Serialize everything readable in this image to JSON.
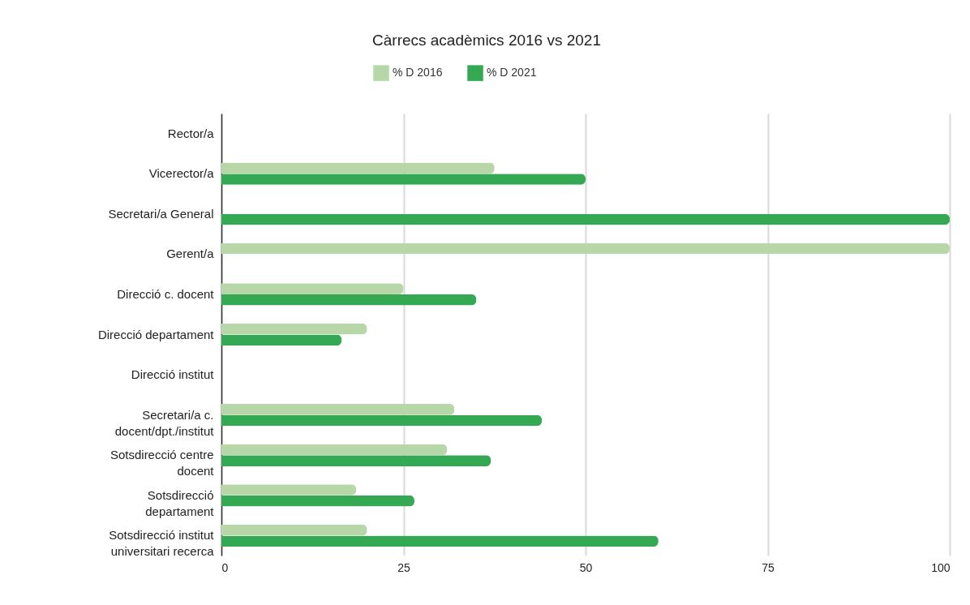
{
  "chart_data": {
    "type": "bar",
    "orientation": "horizontal",
    "title": "Càrrecs acadèmics 2016 vs 2021",
    "categories": [
      "Rector/a",
      "Vicerector/a",
      "Secretari/a General",
      "Gerent/a",
      "Direcció c. docent",
      "Direcció departament",
      "Direcció institut",
      "Secretari/a c. docent/dpt./institut",
      "Sotsdirecció centre docent",
      "Sotsdirecció departament",
      "Sotsdirecció institut universitari recerca"
    ],
    "series": [
      {
        "name": "% D 2016",
        "color": "#b7d7a8",
        "values": [
          null,
          37.5,
          null,
          100,
          25,
          20,
          null,
          32,
          31,
          18.5,
          20
        ]
      },
      {
        "name": "% D 2021",
        "color": "#34a853",
        "values": [
          null,
          50,
          100,
          null,
          35,
          16.5,
          null,
          44,
          37,
          26.5,
          60
        ]
      }
    ],
    "xlim": [
      0,
      100
    ],
    "xticks": [
      0,
      25,
      50,
      75,
      100
    ],
    "grid": "x",
    "legend": "top"
  }
}
